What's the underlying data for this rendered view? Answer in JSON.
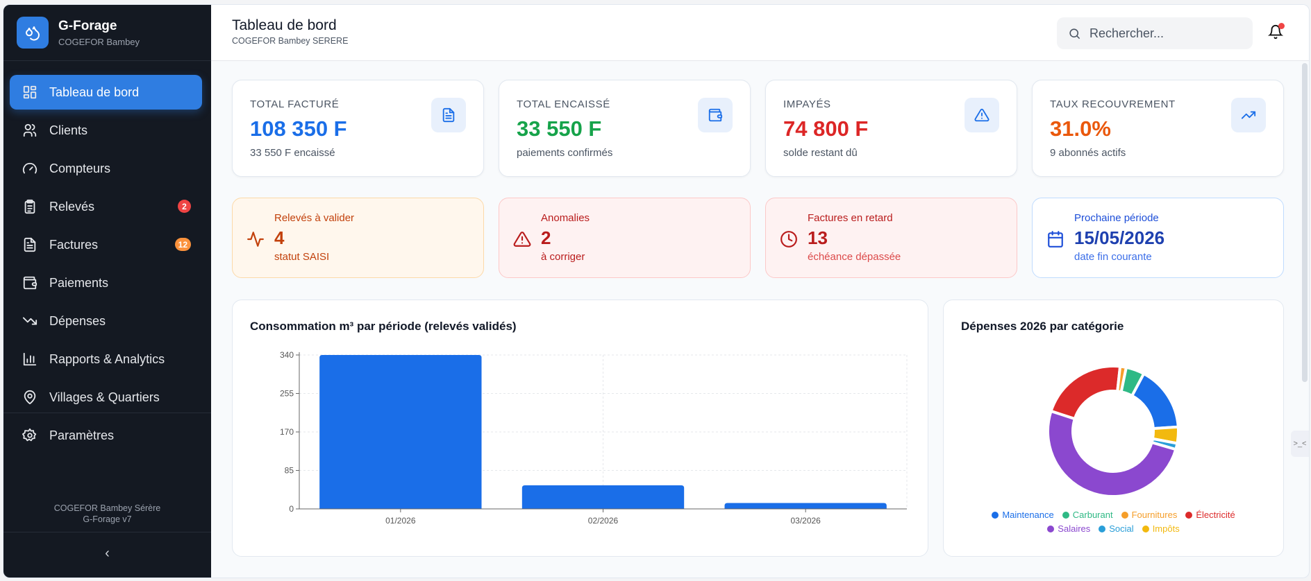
{
  "app": {
    "name": "G-Forage",
    "org": "COGEFOR Bambey"
  },
  "sidebar": {
    "items": [
      {
        "label": "Tableau de bord",
        "icon": "dashboard-icon",
        "active": true
      },
      {
        "label": "Clients",
        "icon": "users-icon"
      },
      {
        "label": "Compteurs",
        "icon": "gauge-icon"
      },
      {
        "label": "Relevés",
        "icon": "clipboard-icon",
        "badge": "2",
        "badge_color": "#ef4444"
      },
      {
        "label": "Factures",
        "icon": "file-icon",
        "badge": "12",
        "badge_color": "#fb923c"
      },
      {
        "label": "Paiements",
        "icon": "wallet-icon"
      },
      {
        "label": "Dépenses",
        "icon": "trending-down-icon"
      },
      {
        "label": "Rapports & Analytics",
        "icon": "bar-chart-icon"
      },
      {
        "label": "Villages & Quartiers",
        "icon": "map-pin-icon"
      },
      {
        "label": "Paramètres",
        "icon": "gear-icon"
      }
    ],
    "footer_line1": "COGEFOR Bambey Sérère",
    "footer_line2": "G-Forage v7",
    "collapse": "‹"
  },
  "header": {
    "title": "Tableau de bord",
    "subtitle": "COGEFOR Bambey SERERE",
    "search_placeholder": "Rechercher..."
  },
  "stats": [
    {
      "label": "TOTAL FACTURÉ",
      "value": "108 350 F",
      "sub": "33 550 F encaissé",
      "color": "#1a6ee8",
      "icon": "document-icon"
    },
    {
      "label": "TOTAL ENCAISSÉ",
      "value": "33 550 F",
      "sub": "paiements confirmés",
      "color": "#16a34a",
      "icon": "wallet-icon"
    },
    {
      "label": "IMPAYÉS",
      "value": "74 800 F",
      "sub": "solde restant dû",
      "color": "#dc2626",
      "icon": "warning-icon"
    },
    {
      "label": "TAUX RECOUVREMENT",
      "value": "31.0%",
      "sub": "9 abonnés actifs",
      "color": "#ea580c",
      "icon": "trending-up-icon"
    }
  ],
  "alerts": [
    {
      "title": "Relevés à valider",
      "value": "4",
      "sub": "statut SAISI",
      "icon": "activity-icon"
    },
    {
      "title": "Anomalies",
      "value": "2",
      "sub": "à corriger",
      "icon": "warning-icon"
    },
    {
      "title": "Factures en retard",
      "value": "13",
      "sub": "échéance dépassée",
      "icon": "clock-icon"
    },
    {
      "title": "Prochaine période",
      "value": "15/05/2026",
      "sub": "date fin courante",
      "icon": "calendar-icon"
    }
  ],
  "chart_data": [
    {
      "type": "bar",
      "title": "Consommation m³ par période (relevés validés)",
      "categories": [
        "01/2026",
        "02/2026",
        "03/2026"
      ],
      "values": [
        340,
        52,
        13
      ],
      "yticks": [
        0,
        85,
        170,
        255,
        340
      ],
      "ylim": [
        0,
        340
      ],
      "grid": true,
      "color": "#1a6ee8"
    },
    {
      "type": "pie",
      "title": "Dépenses 2026 par catégorie",
      "labels": [
        "Maintenance",
        "Carburant",
        "Fournitures",
        "Électricité",
        "Salaires",
        "Social",
        "Impôts"
      ],
      "values": [
        16,
        4.5,
        1.5,
        21.5,
        50,
        1.5,
        4
      ],
      "colors": [
        "#1a6ee8",
        "#2fb985",
        "#f59e2a",
        "#dc2a2a",
        "#8b48cf",
        "#2a9ed8",
        "#f2b90f"
      ],
      "legend": "bottom"
    }
  ]
}
